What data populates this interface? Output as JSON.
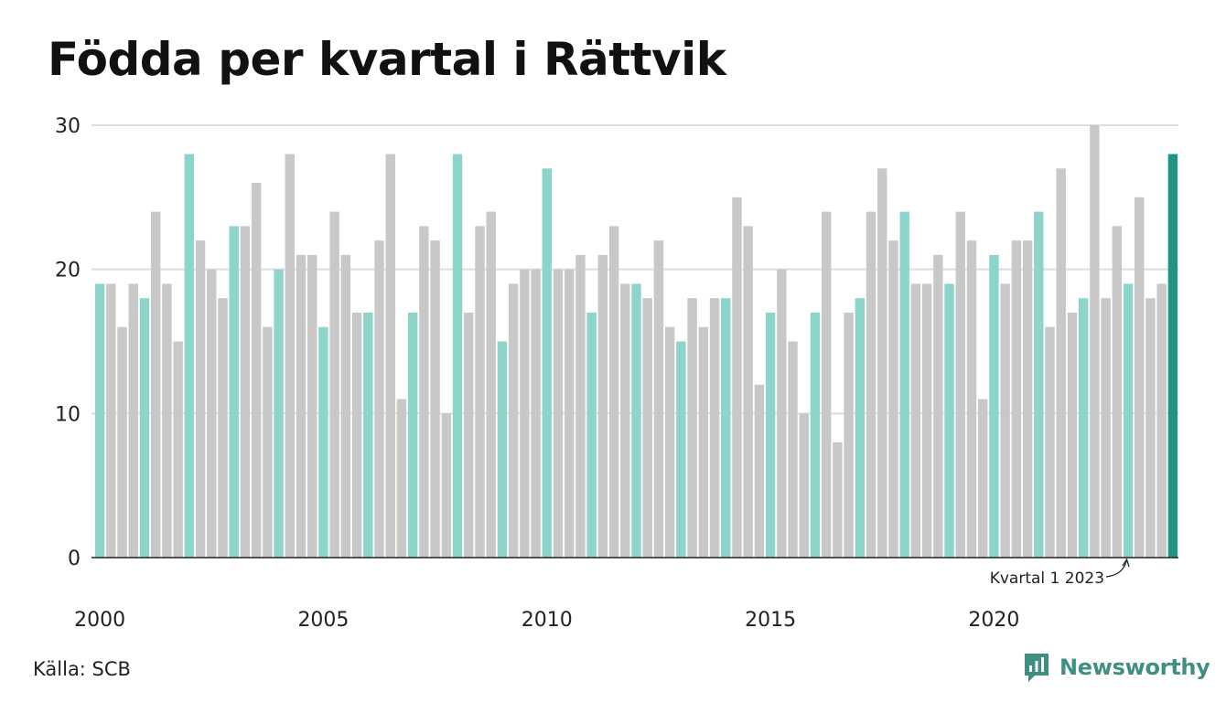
{
  "title": "Födda per kvartal i Rättvik",
  "source": "Källa: SCB",
  "brand": {
    "name": "Newsworthy",
    "icon": "newsworthy-logo-icon"
  },
  "colors": {
    "q1": "#8dd5cb",
    "other": "#c8c8c8",
    "latest": "#1f9485",
    "grid": "#dddddd",
    "axis": "#222222",
    "brand": "#3f8f83"
  },
  "chart_data": {
    "type": "bar",
    "title": "Födda per kvartal i Rättvik",
    "xlabel": "",
    "ylabel": "",
    "ylim": [
      0,
      30
    ],
    "yticks": [
      0,
      10,
      20,
      30
    ],
    "xticks": [
      "2000",
      "2005",
      "2010",
      "2015",
      "2020"
    ],
    "grid": true,
    "start_year": 2000,
    "values": [
      19,
      19,
      16,
      19,
      18,
      24,
      19,
      15,
      28,
      22,
      20,
      18,
      23,
      23,
      26,
      16,
      20,
      28,
      21,
      21,
      16,
      24,
      21,
      17,
      17,
      22,
      28,
      11,
      17,
      23,
      22,
      10,
      28,
      17,
      23,
      24,
      15,
      19,
      20,
      20,
      27,
      20,
      20,
      21,
      17,
      21,
      23,
      19,
      19,
      18,
      22,
      16,
      15,
      18,
      16,
      18,
      18,
      25,
      23,
      12,
      17,
      20,
      15,
      10,
      17,
      24,
      8,
      17,
      18,
      24,
      27,
      22,
      24,
      19,
      19,
      21,
      19,
      24,
      22,
      11,
      21,
      19,
      22,
      22,
      24,
      16,
      27,
      17,
      18,
      30,
      18,
      23,
      19,
      25,
      18,
      19,
      28
    ],
    "annotation": {
      "text": "Kvartal 1 2023",
      "target_index": 92
    }
  }
}
